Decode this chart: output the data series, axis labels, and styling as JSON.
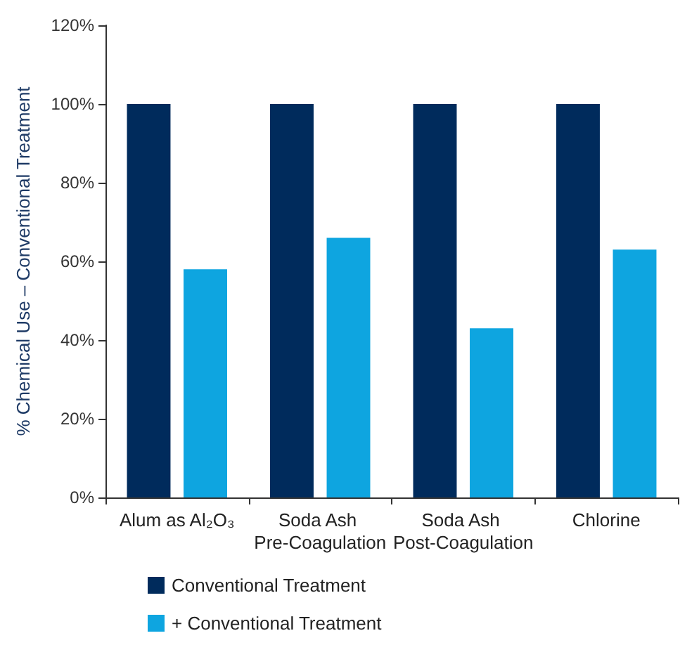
{
  "chart_data": {
    "type": "bar",
    "ylabel": "% Chemical Use – Conventional Treatment",
    "categories": [
      "Alum as Al₂O₃",
      "Soda Ash Pre-Coagulation",
      "Soda Ash Post-Coagulation",
      "Chlorine"
    ],
    "series": [
      {
        "name": "Conventional Treatment",
        "color": "#002b5c",
        "values": [
          100,
          100,
          100,
          100
        ]
      },
      {
        "name": "+ Conventional Treatment",
        "color": "#0ea5e0",
        "values": [
          58,
          66,
          43,
          63
        ]
      }
    ],
    "ylim": [
      0,
      120
    ],
    "yticks": [
      {
        "value": 0,
        "label": "0%"
      },
      {
        "value": 20,
        "label": "20%"
      },
      {
        "value": 40,
        "label": "40%"
      },
      {
        "value": 60,
        "label": "60%"
      },
      {
        "value": 80,
        "label": "80%"
      },
      {
        "value": 100,
        "label": "100%"
      },
      {
        "value": 120,
        "label": "120%"
      }
    ],
    "grid": false,
    "legend": "bottom"
  }
}
